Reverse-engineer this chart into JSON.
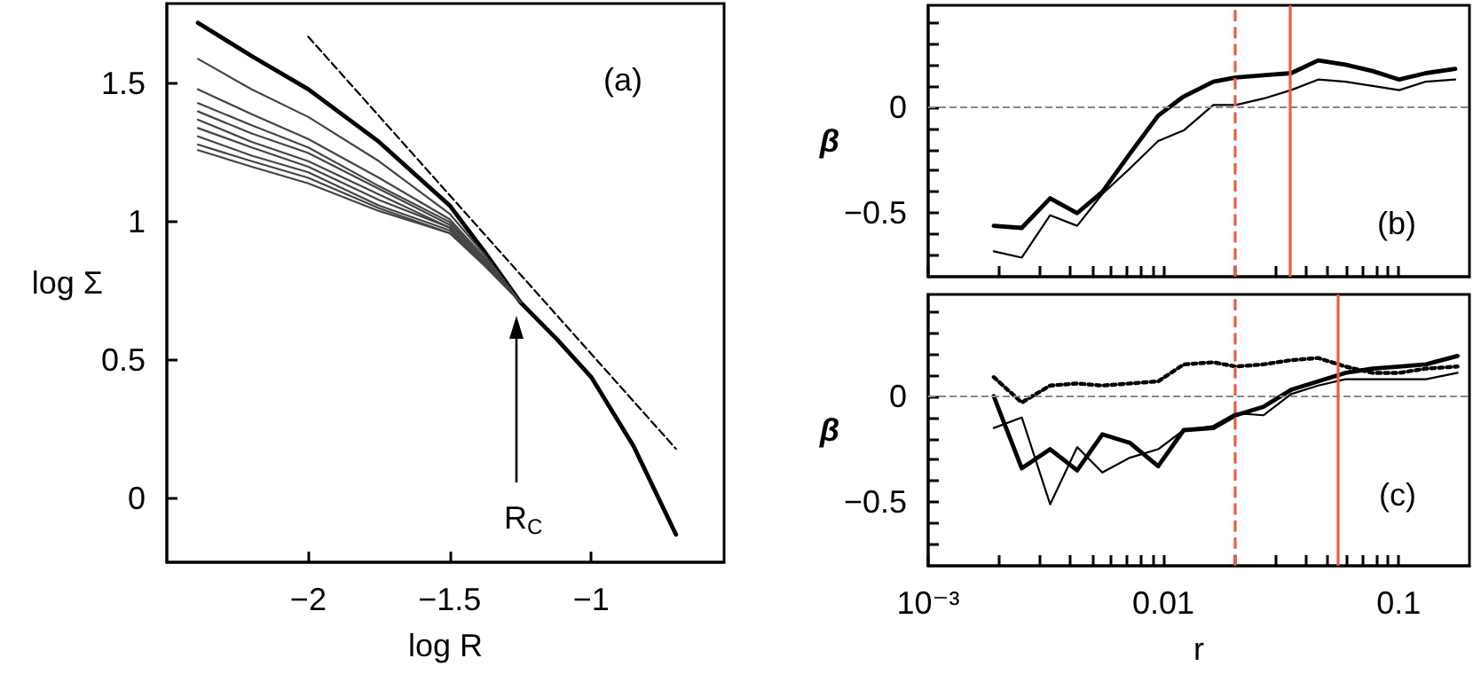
{
  "chart_data": [
    {
      "type": "line",
      "xlabel": "log R",
      "ylabel": "log Σ",
      "xlim": [
        -2.5,
        -0.53
      ],
      "ylim": [
        -0.23,
        1.79
      ],
      "marker": "none",
      "xticks": [
        {
          "value": -2,
          "label": "−2"
        },
        {
          "value": -1.5,
          "label": "−1.5"
        },
        {
          "value": -1,
          "label": "−1"
        }
      ],
      "yticks": [
        0,
        0.5,
        1,
        1.5
      ],
      "annotations": [
        "(a)",
        "R$_{C}$"
      ],
      "series": [
        {
          "color": "#000000",
          "x": [
            -2.39,
            -2.2,
            -2,
            -1.75,
            -1.5,
            -1.375,
            -1.25,
            -1.12,
            -1,
            -0.85,
            -0.7
          ],
          "values": [
            1.72,
            1.6,
            1.48,
            1.29,
            1.06,
            0.89,
            0.71,
            0.575,
            0.44,
            0.19,
            -0.13
          ]
        },
        {
          "color": "#000000",
          "line_style": "dashed",
          "x": [
            -2,
            -0.7
          ],
          "values": [
            1.67,
            0.18
          ]
        },
        {
          "color": "#444444",
          "x": [
            -2.39,
            -2.2,
            -2,
            -1.75,
            -1.5,
            -1.375,
            -1.25
          ],
          "values": [
            1.59,
            1.48,
            1.38,
            1.22,
            1.03,
            0.88,
            0.71
          ]
        },
        {
          "color": "#444444",
          "x": [
            -2.39,
            -2.2,
            -2,
            -1.75,
            -1.5,
            -1.375,
            -1.25
          ],
          "values": [
            1.48,
            1.39,
            1.3,
            1.16,
            1.01,
            0.87,
            0.71
          ]
        },
        {
          "color": "#444444",
          "x": [
            -2.39,
            -2.2,
            -2,
            -1.75,
            -1.5,
            -1.375,
            -1.25
          ],
          "values": [
            1.43,
            1.35,
            1.27,
            1.13,
            1.0,
            0.86,
            0.71
          ]
        },
        {
          "color": "#444444",
          "x": [
            -2.39,
            -2.2,
            -2,
            -1.75,
            -1.5,
            -1.375,
            -1.25
          ],
          "values": [
            1.4,
            1.32,
            1.25,
            1.12,
            0.99,
            0.86,
            0.71
          ]
        },
        {
          "color": "#444444",
          "x": [
            -2.39,
            -2.2,
            -2,
            -1.75,
            -1.5,
            -1.375,
            -1.25
          ],
          "values": [
            1.37,
            1.29,
            1.22,
            1.1,
            0.98,
            0.85,
            0.71
          ]
        },
        {
          "color": "#444444",
          "x": [
            -2.39,
            -2.2,
            -2,
            -1.75,
            -1.5,
            -1.375,
            -1.25
          ],
          "values": [
            1.34,
            1.27,
            1.2,
            1.08,
            0.98,
            0.85,
            0.71
          ]
        },
        {
          "color": "#444444",
          "x": [
            -2.39,
            -2.2,
            -2,
            -1.75,
            -1.5,
            -1.375,
            -1.25
          ],
          "values": [
            1.31,
            1.24,
            1.18,
            1.06,
            0.97,
            0.85,
            0.71
          ]
        },
        {
          "color": "#444444",
          "x": [
            -2.39,
            -2.2,
            -2,
            -1.75,
            -1.5,
            -1.375,
            -1.25
          ],
          "values": [
            1.28,
            1.22,
            1.16,
            1.05,
            0.96,
            0.85,
            0.71
          ]
        },
        {
          "color": "#444444",
          "x": [
            -2.39,
            -2.2,
            -2,
            -1.75,
            -1.5,
            -1.375,
            -1.25
          ],
          "values": [
            1.26,
            1.2,
            1.14,
            1.04,
            0.96,
            0.84,
            0.71
          ]
        }
      ]
    },
    {
      "type": "line",
      "ylabel": "β",
      "log": "x",
      "tick_labels": "y",
      "xlim": [
        0.001,
        0.2
      ],
      "ylim": [
        -0.8,
        0.48
      ],
      "marker": "none",
      "xticks": [
        {
          "value": 0.001,
          "label": null
        },
        {
          "value": 0.002,
          "label": null
        },
        {
          "value": 0.003,
          "label": null
        },
        {
          "value": 0.004,
          "label": null
        },
        {
          "value": 0.005,
          "label": null
        },
        {
          "value": 0.006,
          "label": null
        },
        {
          "value": 0.007,
          "label": null
        },
        {
          "value": 0.008,
          "label": null
        },
        {
          "value": 0.009,
          "label": null
        },
        {
          "value": 0.01,
          "label": null
        },
        {
          "value": 0.02,
          "label": null
        },
        {
          "value": 0.03,
          "label": null
        },
        {
          "value": 0.04,
          "label": null
        },
        {
          "value": 0.05,
          "label": null
        },
        {
          "value": 0.06,
          "label": null
        },
        {
          "value": 0.07,
          "label": null
        },
        {
          "value": 0.08,
          "label": null
        },
        {
          "value": 0.09,
          "label": null
        },
        {
          "value": 0.1,
          "label": null
        }
      ],
      "yticks": [
        {
          "value": -0.7,
          "label": null
        },
        {
          "value": -0.6,
          "label": null
        },
        {
          "value": -0.5,
          "label": "−0.5"
        },
        {
          "value": -0.4,
          "label": null
        },
        {
          "value": -0.3,
          "label": null
        },
        {
          "value": -0.2,
          "label": null
        },
        {
          "value": -0.1,
          "label": null
        },
        0,
        {
          "value": 0.1,
          "label": null
        },
        {
          "value": 0.2,
          "label": null
        },
        {
          "value": 0.3,
          "label": null
        },
        {
          "value": 0.4,
          "label": null
        }
      ],
      "annotations": [
        "(b)"
      ],
      "ref_lines": [
        {
          "axis": "y",
          "value": 0,
          "color": "#888888",
          "line_style": "dashed"
        },
        {
          "axis": "x",
          "value": 0.02,
          "color": "#e8603c",
          "line_style": "dashed"
        },
        {
          "axis": "x",
          "value": 0.0345,
          "color": "#e8603c",
          "line_style": "solid"
        }
      ],
      "series": [
        {
          "color": "#000000",
          "x": [
            0.0019,
            0.0025,
            0.0033,
            0.0043,
            0.0055,
            0.0072,
            0.0095,
            0.0122,
            0.0163,
            0.0203,
            0.0266,
            0.0349,
            0.0455,
            0.0594,
            0.0775,
            0.1006,
            0.1305,
            0.174
          ],
          "values": [
            -0.56,
            -0.57,
            -0.43,
            -0.5,
            -0.4,
            -0.22,
            -0.04,
            0.05,
            0.12,
            0.14,
            0.15,
            0.16,
            0.22,
            0.2,
            0.17,
            0.13,
            0.16,
            0.18
          ]
        },
        {
          "color": "#000000",
          "x": [
            0.0019,
            0.0025,
            0.0033,
            0.0043,
            0.0055,
            0.0072,
            0.0095,
            0.0122,
            0.0163,
            0.0203,
            0.0266,
            0.0349,
            0.0455,
            0.0594,
            0.0775,
            0.1006,
            0.1305,
            0.174
          ],
          "values": [
            -0.68,
            -0.71,
            -0.51,
            -0.56,
            -0.41,
            -0.29,
            -0.16,
            -0.11,
            0.01,
            0.01,
            0.04,
            0.08,
            0.13,
            0.12,
            0.1,
            0.08,
            0.12,
            0.13
          ]
        }
      ]
    },
    {
      "type": "line",
      "xlabel": "r",
      "ylabel": "β",
      "log": "x",
      "xlim": [
        0.001,
        0.2
      ],
      "ylim": [
        -0.8,
        0.48
      ],
      "marker": "none",
      "xticks": [
        {
          "value": 0.001,
          "label": "10⁻³"
        },
        {
          "value": 0.002,
          "label": null
        },
        {
          "value": 0.003,
          "label": null
        },
        {
          "value": 0.004,
          "label": null
        },
        {
          "value": 0.005,
          "label": null
        },
        {
          "value": 0.006,
          "label": null
        },
        {
          "value": 0.007,
          "label": null
        },
        {
          "value": 0.008,
          "label": null
        },
        {
          "value": 0.009,
          "label": null
        },
        {
          "value": 0.01,
          "label": "0.01"
        },
        {
          "value": 0.02,
          "label": null
        },
        {
          "value": 0.03,
          "label": null
        },
        {
          "value": 0.04,
          "label": null
        },
        {
          "value": 0.05,
          "label": null
        },
        {
          "value": 0.06,
          "label": null
        },
        {
          "value": 0.07,
          "label": null
        },
        {
          "value": 0.08,
          "label": null
        },
        {
          "value": 0.09,
          "label": null
        },
        {
          "value": 0.1,
          "label": "0.1"
        }
      ],
      "yticks": [
        {
          "value": -0.7,
          "label": null
        },
        {
          "value": -0.6,
          "label": null
        },
        {
          "value": -0.5,
          "label": "−0.5"
        },
        {
          "value": -0.4,
          "label": null
        },
        {
          "value": -0.3,
          "label": null
        },
        {
          "value": -0.2,
          "label": null
        },
        {
          "value": -0.1,
          "label": null
        },
        0,
        {
          "value": 0.1,
          "label": null
        },
        {
          "value": 0.2,
          "label": null
        },
        {
          "value": 0.3,
          "label": null
        },
        {
          "value": 0.4,
          "label": null
        }
      ],
      "annotations": [
        "(c)"
      ],
      "ref_lines": [
        {
          "axis": "y",
          "value": 0,
          "color": "#888888",
          "line_style": "dashed"
        },
        {
          "axis": "x",
          "value": 0.02,
          "color": "#e8603c",
          "line_style": "dashed"
        },
        {
          "axis": "x",
          "value": 0.055,
          "color": "#e8603c",
          "line_style": "solid"
        }
      ],
      "series": [
        {
          "color": "#000000",
          "x": [
            0.0019,
            0.0025,
            0.0033,
            0.0043,
            0.0055,
            0.0072,
            0.0095,
            0.0122,
            0.0163,
            0.0203,
            0.0266,
            0.0349,
            0.0455,
            0.0594,
            0.0775,
            0.1006,
            0.1305,
            0.178
          ],
          "values": [
            0,
            -0.34,
            -0.25,
            -0.35,
            -0.18,
            -0.22,
            -0.33,
            -0.16,
            -0.15,
            -0.09,
            -0.05,
            0.03,
            0.07,
            0.11,
            0.13,
            0.14,
            0.15,
            0.19
          ]
        },
        {
          "color": "#000000",
          "x": [
            0.0019,
            0.0025,
            0.0033,
            0.0043,
            0.0055,
            0.0072,
            0.0095,
            0.0122,
            0.0163,
            0.0203,
            0.0266,
            0.0349,
            0.0455,
            0.0594,
            0.0775,
            0.1006,
            0.1305,
            0.178
          ],
          "values": [
            -0.15,
            -0.1,
            -0.51,
            -0.24,
            -0.36,
            -0.29,
            -0.25,
            -0.16,
            -0.14,
            -0.08,
            -0.09,
            0.01,
            0.05,
            0.08,
            0.08,
            0.08,
            0.08,
            0.11
          ]
        },
        {
          "color": "#000000",
          "line_style": "dotted",
          "x": [
            0.0019,
            0.0025,
            0.0033,
            0.0043,
            0.0055,
            0.0072,
            0.0095,
            0.0122,
            0.0163,
            0.0203,
            0.0266,
            0.0349,
            0.0455,
            0.0594,
            0.0775,
            0.1006,
            0.1305,
            0.178
          ],
          "values": [
            0.09,
            -0.03,
            0.05,
            0.06,
            0.05,
            0.06,
            0.07,
            0.15,
            0.16,
            0.14,
            0.15,
            0.17,
            0.18,
            0.14,
            0.11,
            0.11,
            0.13,
            0.14
          ]
        }
      ]
    }
  ]
}
